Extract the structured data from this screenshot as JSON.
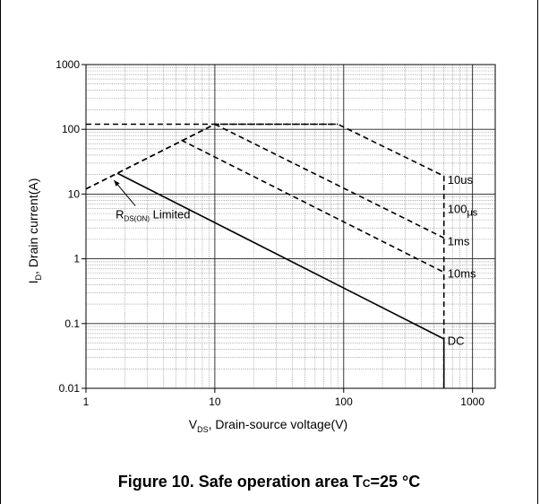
{
  "caption": {
    "prefix": "Figure 10. Safe operation area T",
    "sub": "C",
    "suffix": "=25 °C"
  },
  "chart_data": {
    "type": "line",
    "title": "",
    "xscale": "log",
    "yscale": "log",
    "xlim": [
      1,
      1500
    ],
    "ylim": [
      0.01,
      1000
    ],
    "grid": true,
    "xticks": [
      1,
      10,
      100,
      1000
    ],
    "xtick_labels": [
      "1",
      "10",
      "100",
      "1000"
    ],
    "yticks": [
      0.01,
      0.1,
      1,
      10,
      100,
      1000
    ],
    "ytick_labels": [
      "0.01",
      "0.1",
      "1",
      "10",
      "100",
      "1000"
    ],
    "xlabel": {
      "main": "V",
      "sub": "DS",
      "rest": ", Drain-source voltage(V)"
    },
    "ylabel": {
      "main": "I",
      "sub": "D",
      "rest": ", Drain current(A)"
    },
    "series": [
      {
        "name": "10us",
        "style": "dashed",
        "x": [
          1,
          10,
          90,
          600,
          600
        ],
        "y": [
          12,
          120,
          120,
          19,
          0.01
        ]
      },
      {
        "name": "100μs",
        "style": "dashed",
        "x": [
          10,
          600
        ],
        "y": [
          120,
          2.1
        ]
      },
      {
        "name": "1ms",
        "style": "dashed",
        "x": [
          5.5,
          600
        ],
        "y": [
          68,
          0.62
        ]
      },
      {
        "name": "DC",
        "style": "solid",
        "x": [
          1.75,
          600,
          600
        ],
        "y": [
          21,
          0.058,
          0.01
        ]
      },
      {
        "name": "",
        "style": "dashed",
        "x": [
          1,
          1.55,
          10
        ],
        "y": [
          12,
          18.5,
          120
        ]
      },
      {
        "name": "",
        "style": "dashed",
        "x": [
          1,
          90
        ],
        "y": [
          120,
          120
        ]
      }
    ],
    "labels": [
      {
        "text": "10us",
        "x": 640,
        "y": 17
      },
      {
        "text": "100",
        "sub": "μs",
        "x": 640,
        "y": 6
      },
      {
        "text": "1ms",
        "x": 640,
        "y": 1.9
      },
      {
        "text": "10ms",
        "x": 640,
        "y": 0.6
      },
      {
        "text": "DC",
        "x": 640,
        "y": 0.055
      }
    ],
    "annotation": {
      "text_main": "R",
      "text_sub": "DS(ON)",
      "text_rest": " Limited",
      "x": 1.7,
      "y": 4.2,
      "arrow_to": [
        1.6,
        18.5
      ]
    }
  }
}
